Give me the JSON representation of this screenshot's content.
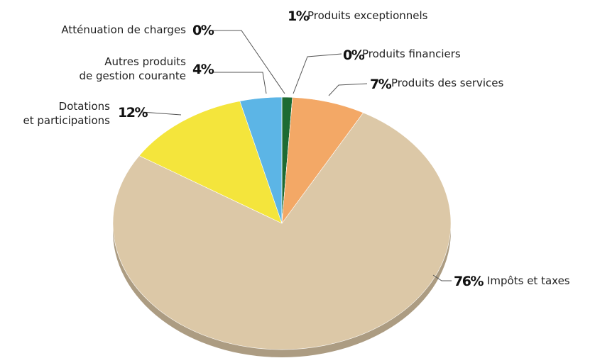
{
  "chart_data": {
    "type": "pie",
    "categories": [
      "Produits exceptionnels",
      "Produits financiers",
      "Produits des services",
      "Impôts et taxes",
      "Dotations et participations",
      "Autres produits de gestion courante",
      "Atténuation de charges"
    ],
    "values": [
      1,
      0,
      7,
      76,
      12,
      4,
      0
    ],
    "value_labels": [
      "1%",
      "0%",
      "7%",
      "76%",
      "12%",
      "4%",
      "0%"
    ],
    "colors": [
      "#1d6b33",
      "#2e8b3e",
      "#f3a866",
      "#dcc8a7",
      "#f4e53c",
      "#5cb5e6",
      "#9a9a9a"
    ]
  }
}
